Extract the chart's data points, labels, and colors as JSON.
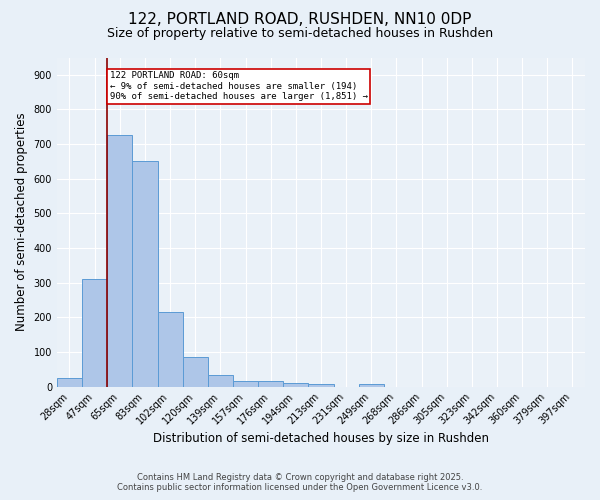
{
  "title1": "122, PORTLAND ROAD, RUSHDEN, NN10 0DP",
  "title2": "Size of property relative to semi-detached houses in Rushden",
  "xlabel": "Distribution of semi-detached houses by size in Rushden",
  "ylabel": "Number of semi-detached properties",
  "bar_labels": [
    "28sqm",
    "47sqm",
    "65sqm",
    "83sqm",
    "102sqm",
    "120sqm",
    "139sqm",
    "157sqm",
    "176sqm",
    "194sqm",
    "213sqm",
    "231sqm",
    "249sqm",
    "268sqm",
    "286sqm",
    "305sqm",
    "323sqm",
    "342sqm",
    "360sqm",
    "379sqm",
    "397sqm"
  ],
  "bar_values": [
    25,
    310,
    725,
    650,
    215,
    85,
    35,
    15,
    15,
    10,
    7,
    0,
    8,
    0,
    0,
    0,
    0,
    0,
    0,
    0,
    0
  ],
  "bar_color": "#aec6e8",
  "bar_edge_color": "#5b9bd5",
  "vline_color": "#8b0000",
  "annotation_text": "122 PORTLAND ROAD: 60sqm\n← 9% of semi-detached houses are smaller (194)\n90% of semi-detached houses are larger (1,851) →",
  "annotation_box_color": "#ffffff",
  "annotation_edge_color": "#cc0000",
  "ylim": [
    0,
    950
  ],
  "yticks": [
    0,
    100,
    200,
    300,
    400,
    500,
    600,
    700,
    800,
    900
  ],
  "footer_line1": "Contains HM Land Registry data © Crown copyright and database right 2025.",
  "footer_line2": "Contains public sector information licensed under the Open Government Licence v3.0.",
  "bg_color": "#e8f0f8",
  "plot_bg_color": "#eaf1f8",
  "grid_color": "#ffffff",
  "title1_fontsize": 11,
  "title2_fontsize": 9,
  "tick_fontsize": 7,
  "label_fontsize": 8.5
}
